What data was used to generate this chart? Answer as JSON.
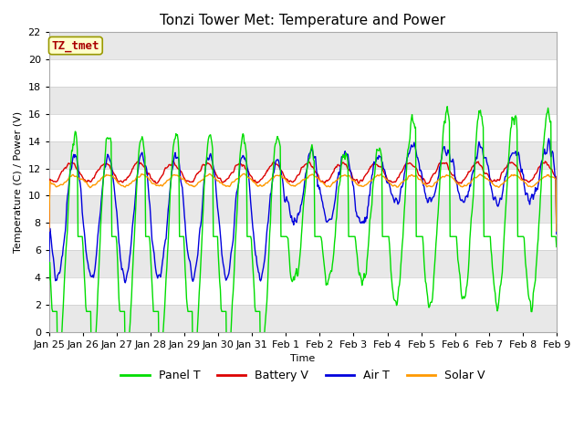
{
  "title": "Tonzi Tower Met: Temperature and Power",
  "ylabel": "Temperature (C) / Power (V)",
  "xlabel": "Time",
  "annotation_text": "TZ_tmet",
  "annotation_bg": "#ffffcc",
  "annotation_fg": "#aa0000",
  "annotation_edge": "#999900",
  "ylim": [
    0,
    22
  ],
  "yticks": [
    0,
    2,
    4,
    6,
    8,
    10,
    12,
    14,
    16,
    18,
    20,
    22
  ],
  "fig_bg": "#ffffff",
  "plot_bg": "#ffffff",
  "band_color": "#e8e8e8",
  "line_colors": {
    "panel_t": "#00dd00",
    "battery_v": "#dd0000",
    "air_t": "#0000dd",
    "solar_v": "#ff9900"
  },
  "legend_labels": [
    "Panel T",
    "Battery V",
    "Air T",
    "Solar V"
  ],
  "x_tick_labels": [
    "Jan 25",
    "Jan 26",
    "Jan 27",
    "Jan 28",
    "Jan 29",
    "Jan 30",
    "Jan 31",
    "Feb 1",
    "Feb 2",
    "Feb 3",
    "Feb 4",
    "Feb 5",
    "Feb 6",
    "Feb 7",
    "Feb 8",
    "Feb 9"
  ],
  "title_fontsize": 11,
  "axis_fontsize": 8,
  "tick_fontsize": 8,
  "legend_fontsize": 9
}
